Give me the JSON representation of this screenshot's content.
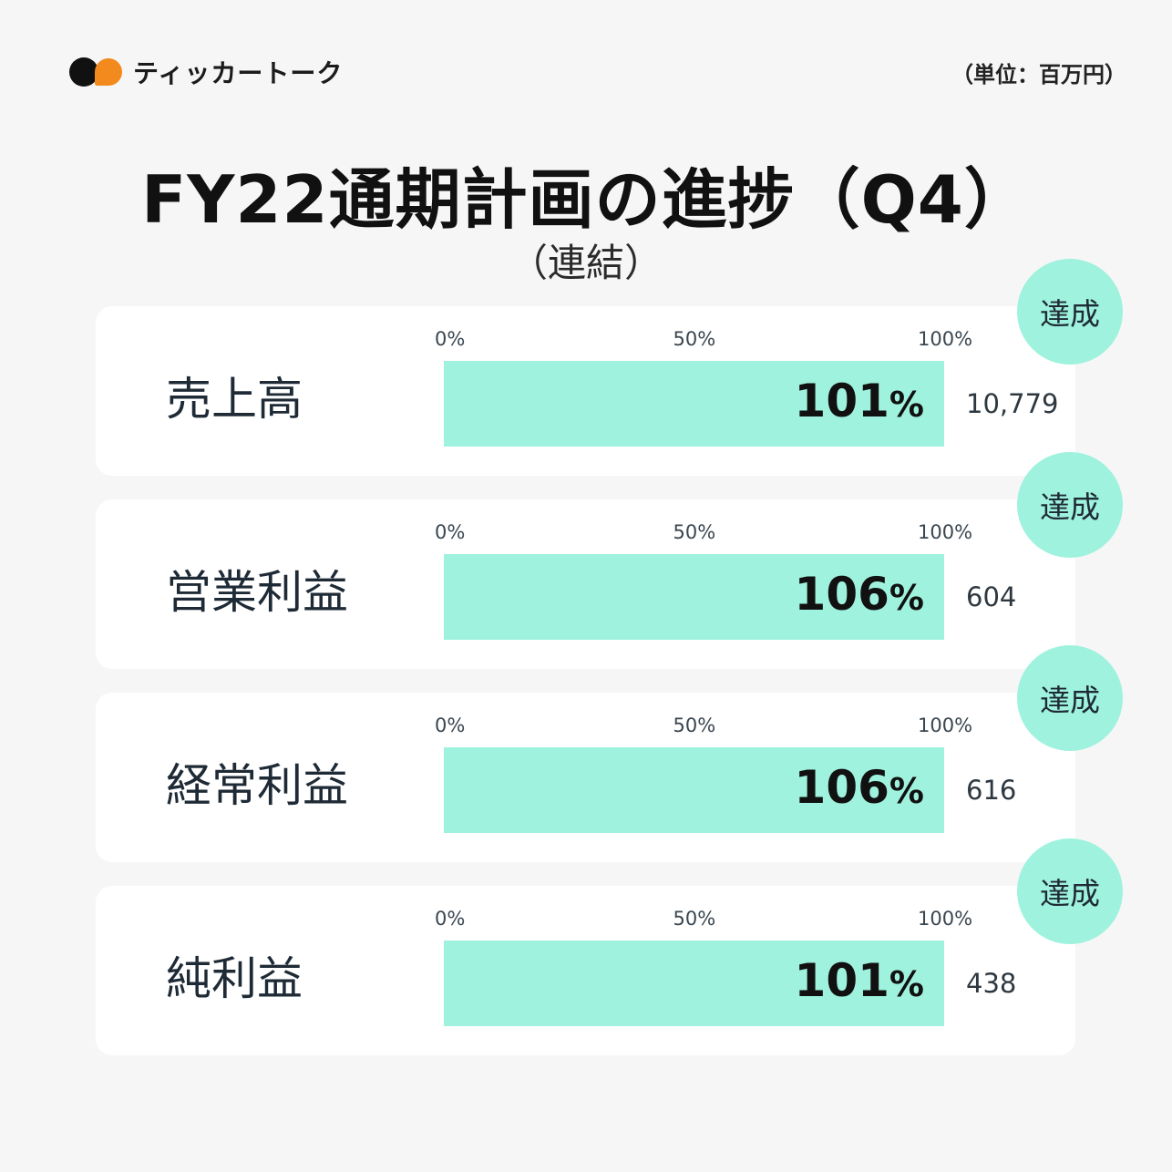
{
  "header": {
    "brand": "ティッカートーク",
    "unit": "（単位：百万円）"
  },
  "title": "FY22通期計画の進捗（Q4）",
  "subtitle": "（連結）",
  "chart_data": {
    "type": "bar",
    "orientation": "horizontal",
    "title": "FY22通期計画の進捗（Q4）",
    "subtitle": "（連結）",
    "unit": "百万円",
    "axis_ticks": [
      "0%",
      "50%",
      "100%"
    ],
    "xlim": [
      0,
      100
    ],
    "categories": [
      "売上高",
      "営業利益",
      "経常利益",
      "純利益"
    ],
    "values": [
      101,
      106,
      106,
      101
    ],
    "value_labels": [
      "101%",
      "106%",
      "106%",
      "101%"
    ],
    "amounts": [
      "10,779",
      "604",
      "616",
      "438"
    ],
    "badges": [
      "達成",
      "達成",
      "達成",
      "達成"
    ],
    "bar_color": "#9ff2dd"
  },
  "colors": {
    "background": "#f6f6f6",
    "card": "#ffffff",
    "accent": "#9ff2dd",
    "brand_orange": "#f28a1e"
  }
}
